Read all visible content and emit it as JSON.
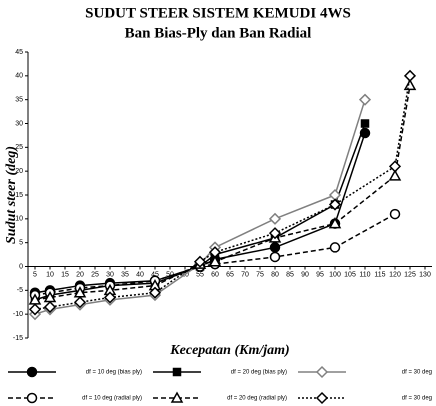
{
  "chart_data": {
    "type": "line",
    "title": "SUDUT STEER SISTEM KEMUDI 4WS",
    "subtitle": "Ban Bias-Ply dan Ban Radial",
    "y_label": "Sudut steer (deg)",
    "x_label": "Kecepatan (Km/jam)",
    "categories": [
      "5",
      "10",
      "15",
      "20",
      "25",
      "30",
      "35",
      "40",
      "45",
      "50",
      "20",
      "55",
      "60",
      "65",
      "70",
      "75",
      "80",
      "85",
      "90",
      "95",
      "100",
      "105",
      "110",
      "115",
      "120",
      "125",
      "130"
    ],
    "ylim": [
      -15,
      45
    ],
    "yticks": [
      -15,
      -10,
      -5,
      0,
      5,
      10,
      15,
      20,
      25,
      30,
      35,
      40,
      45
    ],
    "series": [
      {
        "name": "df = 10 deg (bias ply)",
        "color": "#000000",
        "style": "solid",
        "marker": "circle",
        "x": [
          "5",
          "10",
          "20",
          "30",
          "45",
          "55",
          "60",
          "80",
          "100",
          "110"
        ],
        "values": [
          -5.5,
          -5,
          -4,
          -3.5,
          -3,
          0,
          1.5,
          4,
          9,
          28
        ]
      },
      {
        "name": "df = 20 deg (bias ply)",
        "color": "#000000",
        "style": "solid",
        "marker": "square",
        "x": [
          "5",
          "10",
          "20",
          "30",
          "45",
          "55",
          "60",
          "80",
          "100",
          "110"
        ],
        "values": [
          -7,
          -6,
          -5,
          -4,
          -3.5,
          0,
          2.5,
          6,
          13,
          30
        ]
      },
      {
        "name": "df = 30 deg",
        "color": "#808080",
        "style": "solid",
        "marker": "diamond",
        "x": [
          "5",
          "10",
          "20",
          "30",
          "45",
          "55",
          "60",
          "80",
          "100",
          "110"
        ],
        "values": [
          -10,
          -9,
          -8,
          -7,
          -6,
          0.5,
          4,
          10,
          15,
          35
        ]
      },
      {
        "name": "df = 10 deg (radial ply)",
        "color": "#000000",
        "style": "dashed",
        "marker": "open-circle",
        "x": [
          "5",
          "10",
          "20",
          "30",
          "45",
          "55",
          "60",
          "80",
          "100",
          "120"
        ],
        "values": [
          -6,
          -5.5,
          -4.5,
          -4,
          -3,
          0,
          0.5,
          2,
          4,
          11
        ]
      },
      {
        "name": "df = 20 deg (radial ply)",
        "color": "#000000",
        "style": "dashed",
        "marker": "triangle",
        "x": [
          "5",
          "10",
          "20",
          "30",
          "45",
          "55",
          "60",
          "80",
          "100",
          "120",
          "125"
        ],
        "values": [
          -7,
          -6.5,
          -5.5,
          -5,
          -4,
          0.5,
          1,
          6,
          9,
          19,
          38
        ]
      },
      {
        "name": "df = 30 deg",
        "color": "#000000",
        "style": "dotted",
        "marker": "diamond",
        "x": [
          "5",
          "10",
          "20",
          "30",
          "45",
          "55",
          "60",
          "80",
          "100",
          "120",
          "125"
        ],
        "values": [
          -9,
          -8.5,
          -7.5,
          -6.5,
          -5.5,
          1,
          3,
          7,
          13,
          21,
          40
        ]
      }
    ]
  }
}
